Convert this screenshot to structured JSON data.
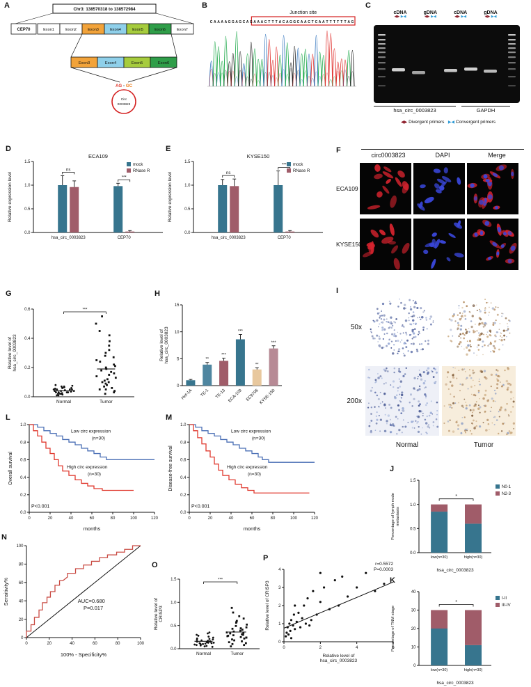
{
  "panels": {
    "A": {
      "label": "A",
      "chr": "Chr3: 138570318 to 138572984",
      "gene": "CEP70",
      "exons_top": [
        "Exon1",
        "Exon2",
        "Exon3",
        "Exon4",
        "Exon5",
        "Exon6",
        "Exon7"
      ],
      "exons_mid": [
        "Exon3",
        "Exon4",
        "Exon5",
        "Exon6"
      ],
      "splice_left": "AG",
      "splice_right": "GC",
      "circ_line1": "Circ",
      "circ_line2": "0003823"
    },
    "B": {
      "label": "B",
      "junction": "Junction site",
      "sequence": "CAAAAGGAGCAGAAACTTTACAGGCAACTCAATTTTTTAG"
    },
    "C": {
      "label": "C",
      "lanes": [
        "cDNA",
        "gDNA",
        "cDNA",
        "gDNA"
      ],
      "genes": [
        "hsa_circ_0003823",
        "GAPDH"
      ],
      "legend_divergent": "Divergent primers",
      "legend_convergent": "Convergent primers"
    },
    "D": {
      "label": "D"
    },
    "E": {
      "label": "E"
    },
    "F": {
      "label": "F",
      "cols": [
        "circ0003823",
        "DAPI",
        "Merge"
      ],
      "rows": [
        "ECA109",
        "KYSE150"
      ]
    },
    "G": {
      "label": "G"
    },
    "H": {
      "label": "H"
    },
    "I": {
      "label": "I",
      "rows": [
        "50x",
        "200x"
      ],
      "cols": [
        "Normal",
        "Tumor"
      ]
    },
    "J": {
      "label": "J"
    },
    "K": {
      "label": "K"
    },
    "L": {
      "label": "L"
    },
    "M": {
      "label": "M"
    },
    "N": {
      "label": "N"
    },
    "O": {
      "label": "O"
    },
    "P": {
      "label": "P"
    }
  },
  "chart_data": {
    "D": {
      "type": "grouped_bar",
      "title": "ECA109",
      "ylabel": "Relative expression level",
      "ylim": [
        0,
        1.5
      ],
      "yticks": [
        "0.0",
        "0.5",
        "1.0",
        "1.5"
      ],
      "categories": [
        "hsa_circ_0003823",
        "CEP70"
      ],
      "series": [
        {
          "name": "mock",
          "color": "#37758e",
          "values": [
            1.0,
            0.98
          ],
          "errors": [
            0.2,
            0.06
          ]
        },
        {
          "name": "RNase R",
          "color": "#a05c69",
          "values": [
            0.96,
            0.02
          ],
          "errors": [
            0.13,
            0.02
          ]
        }
      ],
      "significance": [
        "ns",
        "***"
      ]
    },
    "E": {
      "type": "grouped_bar",
      "title": "KYSE150",
      "ylabel": "Relative expression level",
      "ylim": [
        0,
        1.5
      ],
      "yticks": [
        "0.0",
        "0.5",
        "1.0",
        "1.5"
      ],
      "categories": [
        "hsa_circ_0003823",
        "CEP70"
      ],
      "series": [
        {
          "name": "mock",
          "color": "#37758e",
          "values": [
            1.0,
            1.0
          ],
          "errors": [
            0.12,
            0.3
          ]
        },
        {
          "name": "RNase R",
          "color": "#a05c69",
          "values": [
            0.98,
            0.02
          ],
          "errors": [
            0.15,
            0.02
          ]
        }
      ],
      "significance": [
        "ns",
        "***"
      ]
    },
    "G": {
      "type": "scatter_cat",
      "ylabel": [
        "Relative level of",
        "hsa_circ_0003823"
      ],
      "ylim": [
        0,
        0.6
      ],
      "yticks": [
        "0.0",
        "0.2",
        "0.4",
        "0.6"
      ],
      "categories": [
        "Normal",
        "Tumor"
      ],
      "significance": "***",
      "groups": [
        {
          "name": "Normal",
          "mean": 0.04,
          "values": [
            0.01,
            0.015,
            0.02,
            0.02,
            0.025,
            0.03,
            0.03,
            0.03,
            0.035,
            0.04,
            0.04,
            0.04,
            0.045,
            0.05,
            0.05,
            0.05,
            0.055,
            0.06,
            0.06,
            0.065,
            0.07,
            0.07,
            0.075,
            0.08,
            0.02,
            0.03,
            0.04,
            0.05,
            0.01,
            0.06
          ]
        },
        {
          "name": "Tumor",
          "mean": 0.19,
          "values": [
            0.02,
            0.03,
            0.04,
            0.05,
            0.05,
            0.06,
            0.07,
            0.08,
            0.09,
            0.1,
            0.1,
            0.11,
            0.12,
            0.13,
            0.14,
            0.15,
            0.16,
            0.17,
            0.18,
            0.2,
            0.21,
            0.22,
            0.24,
            0.25,
            0.27,
            0.28,
            0.3,
            0.32,
            0.35,
            0.38,
            0.42,
            0.45,
            0.5,
            0.55,
            0.19
          ]
        }
      ]
    },
    "H": {
      "type": "bar",
      "ylabel": [
        "Relative level of",
        "hsa_circ_0003823"
      ],
      "ylim": [
        0,
        15
      ],
      "yticks": [
        "0",
        "5",
        "10",
        "15"
      ],
      "categories": [
        "Het-1A",
        "TE-1",
        "TE-13",
        "ECA-109",
        "EC9706",
        "KYSE-150"
      ],
      "values": [
        1.0,
        3.9,
        4.6,
        8.6,
        3.0,
        6.9
      ],
      "errors": [
        0.15,
        0.4,
        0.5,
        0.9,
        0.3,
        0.5
      ],
      "colors": [
        "#37758e",
        "#4f86a0",
        "#a05c69",
        "#37758e",
        "#e8c89e",
        "#b78a95"
      ],
      "significance": [
        "",
        "**",
        "***",
        "***",
        "**",
        "***"
      ]
    },
    "L": {
      "type": "km",
      "ylabel": "Overall survival",
      "xlabel": "months",
      "xlim": [
        0,
        120
      ],
      "ylim": [
        0,
        1
      ],
      "xticks": [
        0,
        20,
        40,
        60,
        80,
        100,
        120
      ],
      "yticks": [
        "0.0",
        "0.2",
        "0.4",
        "0.6",
        "0.8",
        "1.0"
      ],
      "pvalue": "P<0.001",
      "series": [
        {
          "name": "Low circ expression",
          "n": "(n=30)",
          "color": "#4a6fb5",
          "steps": [
            [
              0,
              1.0
            ],
            [
              8,
              0.97
            ],
            [
              14,
              0.93
            ],
            [
              20,
              0.9
            ],
            [
              26,
              0.87
            ],
            [
              32,
              0.83
            ],
            [
              38,
              0.8
            ],
            [
              44,
              0.77
            ],
            [
              50,
              0.73
            ],
            [
              56,
              0.7
            ],
            [
              62,
              0.67
            ],
            [
              68,
              0.63
            ],
            [
              74,
              0.6
            ],
            [
              120,
              0.6
            ]
          ]
        },
        {
          "name": "High circ expression",
          "n": "(n=30)",
          "color": "#e0392e",
          "steps": [
            [
              0,
              1.0
            ],
            [
              4,
              0.93
            ],
            [
              8,
              0.87
            ],
            [
              12,
              0.8
            ],
            [
              16,
              0.73
            ],
            [
              20,
              0.67
            ],
            [
              24,
              0.6
            ],
            [
              28,
              0.53
            ],
            [
              32,
              0.47
            ],
            [
              38,
              0.42
            ],
            [
              44,
              0.37
            ],
            [
              50,
              0.33
            ],
            [
              56,
              0.3
            ],
            [
              62,
              0.27
            ],
            [
              70,
              0.25
            ],
            [
              100,
              0.25
            ]
          ]
        }
      ]
    },
    "M": {
      "type": "km",
      "ylabel": "Disease-free survival",
      "xlabel": "months",
      "xlim": [
        0,
        120
      ],
      "ylim": [
        0,
        1
      ],
      "xticks": [
        0,
        20,
        40,
        60,
        80,
        100,
        120
      ],
      "yticks": [
        "0.0",
        "0.2",
        "0.4",
        "0.6",
        "0.8",
        "1.0"
      ],
      "pvalue": "P<0.001",
      "series": [
        {
          "name": "Low circ expression",
          "n": "(n=30)",
          "color": "#4a6fb5",
          "steps": [
            [
              0,
              1.0
            ],
            [
              6,
              0.97
            ],
            [
              12,
              0.93
            ],
            [
              18,
              0.9
            ],
            [
              24,
              0.87
            ],
            [
              30,
              0.83
            ],
            [
              36,
              0.8
            ],
            [
              42,
              0.77
            ],
            [
              48,
              0.73
            ],
            [
              54,
              0.7
            ],
            [
              60,
              0.67
            ],
            [
              66,
              0.63
            ],
            [
              70,
              0.6
            ],
            [
              76,
              0.57
            ],
            [
              120,
              0.57
            ]
          ]
        },
        {
          "name": "High circ expression",
          "n": "(n=30)",
          "color": "#e0392e",
          "steps": [
            [
              0,
              1.0
            ],
            [
              4,
              0.93
            ],
            [
              8,
              0.85
            ],
            [
              12,
              0.78
            ],
            [
              16,
              0.7
            ],
            [
              20,
              0.63
            ],
            [
              24,
              0.55
            ],
            [
              28,
              0.48
            ],
            [
              32,
              0.42
            ],
            [
              38,
              0.37
            ],
            [
              44,
              0.32
            ],
            [
              50,
              0.28
            ],
            [
              56,
              0.25
            ],
            [
              62,
              0.22
            ],
            [
              115,
              0.22
            ]
          ]
        }
      ]
    },
    "N": {
      "type": "roc",
      "ylabel": "Sensitivity%",
      "xlabel": "100% - Specificity%",
      "ticks": [
        0,
        20,
        40,
        60,
        80,
        100
      ],
      "auc": "AUC=0.680",
      "p": "P=0.017",
      "curve": [
        [
          0,
          0
        ],
        [
          0,
          7
        ],
        [
          4,
          7
        ],
        [
          4,
          14
        ],
        [
          7,
          14
        ],
        [
          7,
          22
        ],
        [
          11,
          22
        ],
        [
          11,
          30
        ],
        [
          14,
          30
        ],
        [
          14,
          38
        ],
        [
          18,
          38
        ],
        [
          18,
          44
        ],
        [
          21,
          44
        ],
        [
          21,
          50
        ],
        [
          25,
          50
        ],
        [
          25,
          57
        ],
        [
          29,
          57
        ],
        [
          29,
          62
        ],
        [
          32,
          62
        ],
        [
          36,
          66
        ],
        [
          36,
          70
        ],
        [
          43,
          70
        ],
        [
          43,
          75
        ],
        [
          50,
          75
        ],
        [
          50,
          79
        ],
        [
          57,
          79
        ],
        [
          57,
          83
        ],
        [
          64,
          83
        ],
        [
          64,
          87
        ],
        [
          71,
          87
        ],
        [
          71,
          90
        ],
        [
          79,
          90
        ],
        [
          79,
          93
        ],
        [
          86,
          93
        ],
        [
          86,
          96
        ],
        [
          93,
          96
        ],
        [
          93,
          100
        ],
        [
          100,
          100
        ]
      ]
    },
    "O": {
      "type": "scatter_cat",
      "ylabel": [
        "Relative level of",
        "CRISP3"
      ],
      "ylim": [
        0,
        1.5
      ],
      "yticks": [
        "0.0",
        "0.5",
        "1.0",
        "1.5"
      ],
      "categories": [
        "Normal",
        "Tumor"
      ],
      "significance": "***",
      "groups": [
        {
          "name": "Normal",
          "mean": 0.16,
          "values": [
            0.04,
            0.05,
            0.06,
            0.07,
            0.08,
            0.09,
            0.1,
            0.1,
            0.11,
            0.12,
            0.12,
            0.13,
            0.14,
            0.15,
            0.15,
            0.16,
            0.17,
            0.18,
            0.19,
            0.2,
            0.21,
            0.22,
            0.24,
            0.26,
            0.28,
            0.3,
            0.33,
            0.35,
            0.13,
            0.09
          ]
        },
        {
          "name": "Tumor",
          "mean": 0.36,
          "values": [
            0.05,
            0.08,
            0.1,
            0.12,
            0.14,
            0.16,
            0.18,
            0.2,
            0.22,
            0.24,
            0.25,
            0.27,
            0.28,
            0.3,
            0.31,
            0.33,
            0.35,
            0.37,
            0.39,
            0.41,
            0.43,
            0.46,
            0.49,
            0.52,
            0.56,
            0.6,
            0.65,
            0.7,
            0.78,
            0.88,
            0.34,
            0.29,
            0.44,
            0.58,
            0.24
          ]
        }
      ]
    },
    "P": {
      "type": "scatter_xy",
      "annotation": [
        "r=0.5572",
        "P=0.0003"
      ],
      "xlabel": [
        "Relative level of",
        "hsa_circ_0003823"
      ],
      "ylabel": "Relative level of CRISP3",
      "xlim": [
        0,
        6
      ],
      "ylim": [
        0,
        4
      ],
      "xticks": [
        0,
        2,
        4,
        6
      ],
      "yticks": [
        0,
        1,
        2,
        3,
        4
      ],
      "fit": [
        [
          0,
          0.75
        ],
        [
          6,
          3.3
        ]
      ],
      "points": [
        [
          0.1,
          0.3
        ],
        [
          0.15,
          0.5
        ],
        [
          0.2,
          0.8
        ],
        [
          0.25,
          0.4
        ],
        [
          0.3,
          1.0
        ],
        [
          0.35,
          0.6
        ],
        [
          0.4,
          1.2
        ],
        [
          0.5,
          0.9
        ],
        [
          0.55,
          1.5
        ],
        [
          0.6,
          0.7
        ],
        [
          0.7,
          1.1
        ],
        [
          0.8,
          1.6
        ],
        [
          0.9,
          0.8
        ],
        [
          1.0,
          1.3
        ],
        [
          1.1,
          2.0
        ],
        [
          1.2,
          1.0
        ],
        [
          1.3,
          2.4
        ],
        [
          1.5,
          1.2
        ],
        [
          1.6,
          2.8
        ],
        [
          1.8,
          1.5
        ],
        [
          2.0,
          2.2
        ],
        [
          2.2,
          3.0
        ],
        [
          2.5,
          1.8
        ],
        [
          2.8,
          3.4
        ],
        [
          3.0,
          2.0
        ],
        [
          3.2,
          3.6
        ],
        [
          3.5,
          2.5
        ],
        [
          4.0,
          3.0
        ],
        [
          4.5,
          3.8
        ],
        [
          5.0,
          2.8
        ],
        [
          5.5,
          3.2
        ],
        [
          0.4,
          0.2
        ],
        [
          0.6,
          2.0
        ],
        [
          1.4,
          0.9
        ],
        [
          2.0,
          3.8
        ]
      ]
    },
    "J": {
      "type": "stacked_bar",
      "ylabel": [
        "Percentage of lymph node",
        "metastasis"
      ],
      "ylim": [
        0,
        1.5
      ],
      "yticks": [
        "0.0",
        "0.5",
        "1.0",
        "1.5"
      ],
      "categories": [
        "low(n=30)",
        "high(n=30)"
      ],
      "xlabel": "hsa_circ_0003823",
      "significance": "*",
      "series": [
        {
          "name": "N0-1",
          "color": "#37758e",
          "values": [
            0.85,
            0.6
          ]
        },
        {
          "name": "N2-3",
          "color": "#a05c69",
          "values": [
            0.15,
            0.4
          ]
        }
      ]
    },
    "K": {
      "type": "stacked_bar",
      "ylabel": [
        "Percentage of TNM stage"
      ],
      "ylim": [
        0,
        40
      ],
      "yticks": [
        "0",
        "10",
        "20",
        "30",
        "40"
      ],
      "categories": [
        "low(n=30)",
        "high(n=30)"
      ],
      "xlabel": "hsa_circ_0003823",
      "significance": "*",
      "series": [
        {
          "name": "I-II",
          "color": "#37758e",
          "values": [
            20,
            11
          ]
        },
        {
          "name": "III-IV",
          "color": "#a05c69",
          "values": [
            10,
            19
          ]
        }
      ]
    }
  }
}
